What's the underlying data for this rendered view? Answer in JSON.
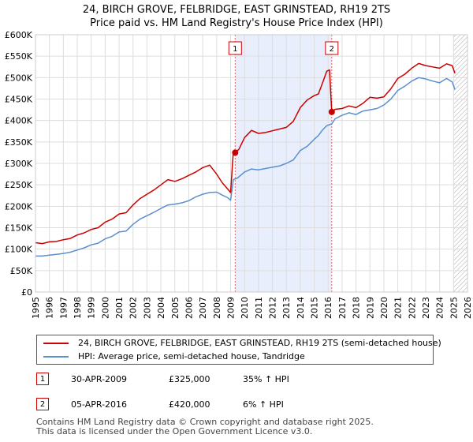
{
  "chart_data": {
    "type": "line",
    "title": "24, BIRCH GROVE, FELBRIDGE, EAST GRINSTEAD, RH19 2TS",
    "subtitle": "Price paid vs. HM Land Registry's House Price Index (HPI)",
    "xlim": [
      1995,
      2026
    ],
    "ylim": [
      0,
      600000
    ],
    "x_ticks": [
      "1995",
      "1996",
      "1997",
      "1998",
      "1999",
      "2000",
      "2001",
      "2002",
      "2003",
      "2004",
      "2005",
      "2006",
      "2007",
      "2008",
      "2009",
      "2010",
      "2011",
      "2012",
      "2013",
      "2014",
      "2015",
      "2016",
      "2017",
      "2018",
      "2019",
      "2020",
      "2021",
      "2022",
      "2023",
      "2024",
      "2025",
      "2026"
    ],
    "y_ticks": [
      {
        "value": 0,
        "label": "£0"
      },
      {
        "value": 50000,
        "label": "£50K"
      },
      {
        "value": 100000,
        "label": "£100K"
      },
      {
        "value": 150000,
        "label": "£150K"
      },
      {
        "value": 200000,
        "label": "£200K"
      },
      {
        "value": 250000,
        "label": "£250K"
      },
      {
        "value": 300000,
        "label": "£300K"
      },
      {
        "value": 350000,
        "label": "£350K"
      },
      {
        "value": 400000,
        "label": "£400K"
      },
      {
        "value": 450000,
        "label": "£450K"
      },
      {
        "value": 500000,
        "label": "£500K"
      },
      {
        "value": 550000,
        "label": "£550K"
      },
      {
        "value": 600000,
        "label": "£600K"
      }
    ],
    "grid": true,
    "shaded_region": {
      "from": 2009.33,
      "to": 2016.26,
      "color": "#e8eefc"
    },
    "forecast_hatch_from": 2025.0,
    "series": [
      {
        "name": "24, BIRCH GROVE, FELBRIDGE, EAST GRINSTEAD, RH19 2TS (semi-detached house)",
        "color": "#cc0000",
        "x": [
          1995.0,
          1995.5,
          1996.0,
          1996.5,
          1997.0,
          1997.5,
          1998.0,
          1998.5,
          1999.0,
          1999.5,
          2000.0,
          2000.5,
          2001.0,
          2001.5,
          2002.0,
          2002.5,
          2003.0,
          2003.5,
          2004.0,
          2004.5,
          2005.0,
          2005.5,
          2006.0,
          2006.5,
          2007.0,
          2007.5,
          2008.0,
          2008.4,
          2008.8,
          2009.0,
          2009.2,
          2009.33,
          2009.6,
          2010.0,
          2010.5,
          2011.0,
          2011.5,
          2012.0,
          2012.5,
          2013.0,
          2013.5,
          2014.0,
          2014.5,
          2015.0,
          2015.3,
          2015.6,
          2015.9,
          2016.1,
          2016.26,
          2016.5,
          2017.0,
          2017.5,
          2018.0,
          2018.5,
          2019.0,
          2019.5,
          2020.0,
          2020.5,
          2021.0,
          2021.5,
          2022.0,
          2022.5,
          2023.0,
          2023.5,
          2024.0,
          2024.5,
          2024.9,
          2025.1
        ],
        "y": [
          115000,
          113000,
          117000,
          118000,
          122000,
          125000,
          133000,
          138000,
          146000,
          150000,
          163000,
          170000,
          182000,
          185000,
          203000,
          218000,
          228000,
          238000,
          250000,
          262000,
          258000,
          264000,
          272000,
          280000,
          290000,
          296000,
          275000,
          255000,
          240000,
          232000,
          328000,
          325000,
          333000,
          360000,
          377000,
          370000,
          372000,
          376000,
          380000,
          384000,
          398000,
          430000,
          448000,
          458000,
          462000,
          488000,
          515000,
          518000,
          420000,
          426000,
          428000,
          434000,
          430000,
          440000,
          454000,
          452000,
          455000,
          474000,
          498000,
          508000,
          522000,
          533000,
          528000,
          525000,
          522000,
          532000,
          528000,
          510000
        ]
      },
      {
        "name": "HPI: Average price, semi-detached house, Tandridge",
        "color": "#5b8fd0",
        "x": [
          1995.0,
          1995.5,
          1996.0,
          1996.5,
          1997.0,
          1997.5,
          1998.0,
          1998.5,
          1999.0,
          1999.5,
          2000.0,
          2000.5,
          2001.0,
          2001.5,
          2002.0,
          2002.5,
          2003.0,
          2003.5,
          2004.0,
          2004.5,
          2005.0,
          2005.5,
          2006.0,
          2006.5,
          2007.0,
          2007.5,
          2008.0,
          2008.4,
          2008.8,
          2009.0,
          2009.2,
          2009.5,
          2010.0,
          2010.5,
          2011.0,
          2011.5,
          2012.0,
          2012.5,
          2013.0,
          2013.5,
          2014.0,
          2014.5,
          2015.0,
          2015.3,
          2015.6,
          2015.9,
          2016.26,
          2016.5,
          2017.0,
          2017.5,
          2018.0,
          2018.5,
          2019.0,
          2019.5,
          2020.0,
          2020.5,
          2021.0,
          2021.5,
          2022.0,
          2022.5,
          2023.0,
          2023.5,
          2024.0,
          2024.5,
          2024.9,
          2025.1
        ],
        "y": [
          84000,
          84000,
          86000,
          88000,
          90000,
          93000,
          98000,
          103000,
          110000,
          114000,
          124000,
          130000,
          140000,
          142000,
          158000,
          170000,
          178000,
          186000,
          195000,
          203000,
          205000,
          208000,
          213000,
          222000,
          228000,
          232000,
          233000,
          226000,
          220000,
          214000,
          262000,
          266000,
          280000,
          287000,
          285000,
          288000,
          291000,
          294000,
          300000,
          308000,
          330000,
          340000,
          356000,
          365000,
          378000,
          388000,
          392000,
          404000,
          412000,
          418000,
          414000,
          422000,
          425000,
          428000,
          436000,
          450000,
          470000,
          480000,
          492000,
          500000,
          497000,
          492000,
          488000,
          498000,
          490000,
          472000
        ]
      }
    ],
    "annotations": [
      {
        "label": "1",
        "x": 2009.33,
        "y": 325000
      },
      {
        "label": "2",
        "x": 2016.26,
        "y": 420000
      }
    ]
  },
  "legend": {
    "entries": [
      {
        "label": "24, BIRCH GROVE, FELBRIDGE, EAST GRINSTEAD, RH19 2TS (semi-detached house)",
        "color": "#cc0000"
      },
      {
        "label": "HPI: Average price, semi-detached house, Tandridge",
        "color": "#5b8fd0"
      }
    ]
  },
  "sales": [
    {
      "marker": "1",
      "date": "30-APR-2009",
      "price": "£325,000",
      "hpi_change": "35% ↑ HPI"
    },
    {
      "marker": "2",
      "date": "05-APR-2016",
      "price": "£420,000",
      "hpi_change": "6% ↑ HPI"
    }
  ],
  "footer": {
    "line1": "Contains HM Land Registry data © Crown copyright and database right 2025.",
    "line2": "This data is licensed under the Open Government Licence v3.0."
  }
}
